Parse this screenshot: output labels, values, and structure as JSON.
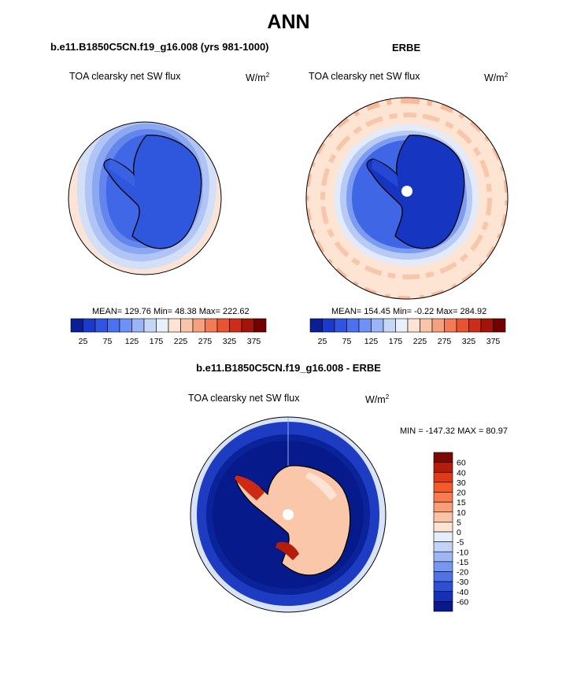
{
  "page": {
    "title": "ANN"
  },
  "panels": {
    "model": {
      "case_title": "b.e11.B1850C5CN.f19_g16.008 (yrs 981-1000)",
      "variable": "TOA clearsky net SW flux",
      "unit_base": "W/m",
      "unit_exp": "2",
      "stats": "MEAN= 129.76  Min=  48.38  Max= 222.62"
    },
    "obs": {
      "case_title": "ERBE",
      "variable": "TOA clearsky net SW flux",
      "unit_base": "W/m",
      "unit_exp": "2",
      "stats": "MEAN= 154.45  Min=  -0.22  Max= 284.92"
    },
    "diff": {
      "case_title": "b.e11.B1850C5CN.f19_g16.008 - ERBE",
      "variable": "TOA clearsky net SW flux",
      "unit_base": "W/m",
      "unit_exp": "2",
      "stats": "MIN = -147.32 MAX =  80.97"
    }
  },
  "chart_data": [
    {
      "type": "heatmap",
      "projection": "south-polar-stereographic",
      "title": "b.e11.B1850C5CN.f19_g16.008 (yrs 981-1000)",
      "variable": "TOA clearsky net SW flux",
      "units": "W/m2",
      "mean": 129.76,
      "min": 48.38,
      "max": 222.62,
      "colorbar": {
        "orientation": "horizontal",
        "levels": [
          25,
          50,
          75,
          100,
          125,
          150,
          175,
          200,
          225,
          250,
          275,
          300,
          325,
          350,
          375
        ],
        "tick_labels": [
          "25",
          "75",
          "125",
          "175",
          "225",
          "275",
          "325",
          "375"
        ],
        "colors": [
          "#0a1f96",
          "#1b3ac8",
          "#2f55e0",
          "#4a72ee",
          "#6e92f3",
          "#9bb4f6",
          "#c6d6f7",
          "#eaf0fb",
          "#fde3d3",
          "#f9c4a8",
          "#f6a07d",
          "#f27a55",
          "#e9532f",
          "#cc2d1a",
          "#a31408",
          "#730000"
        ]
      }
    },
    {
      "type": "heatmap",
      "projection": "south-polar-stereographic",
      "title": "ERBE",
      "variable": "TOA clearsky net SW flux",
      "units": "W/m2",
      "mean": 154.45,
      "min": -0.22,
      "max": 284.92,
      "colorbar": {
        "orientation": "horizontal",
        "levels": [
          25,
          50,
          75,
          100,
          125,
          150,
          175,
          200,
          225,
          250,
          275,
          300,
          325,
          350,
          375
        ],
        "tick_labels": [
          "25",
          "75",
          "125",
          "175",
          "225",
          "275",
          "325",
          "375"
        ],
        "colors": [
          "#0a1f96",
          "#1b3ac8",
          "#2f55e0",
          "#4a72ee",
          "#6e92f3",
          "#9bb4f6",
          "#c6d6f7",
          "#eaf0fb",
          "#fde3d3",
          "#f9c4a8",
          "#f6a07d",
          "#f27a55",
          "#e9532f",
          "#cc2d1a",
          "#a31408",
          "#730000"
        ]
      }
    },
    {
      "type": "heatmap",
      "projection": "south-polar-stereographic",
      "title": "b.e11.B1850C5CN.f19_g16.008 - ERBE",
      "variable": "TOA clearsky net SW flux",
      "units": "W/m2",
      "min": -147.32,
      "max": 80.97,
      "colorbar": {
        "orientation": "vertical",
        "levels": [
          -60,
          -40,
          -30,
          -20,
          -15,
          -10,
          -5,
          0,
          5,
          10,
          15,
          20,
          30,
          40,
          60
        ],
        "tick_labels": [
          "60",
          "40",
          "30",
          "20",
          "15",
          "10",
          "5",
          "0",
          "-5",
          "-10",
          "-15",
          "-20",
          "-30",
          "-40",
          "-60"
        ],
        "colors": [
          "#7d0a00",
          "#b51d0a",
          "#de3a16",
          "#f35a2c",
          "#f77c4e",
          "#f99e76",
          "#fbc2a4",
          "#fde4d2",
          "#e6edfb",
          "#c3d3f7",
          "#9db7f4",
          "#7697ef",
          "#4f73e6",
          "#2e50d6",
          "#1631b6",
          "#061a8c"
        ]
      }
    }
  ]
}
